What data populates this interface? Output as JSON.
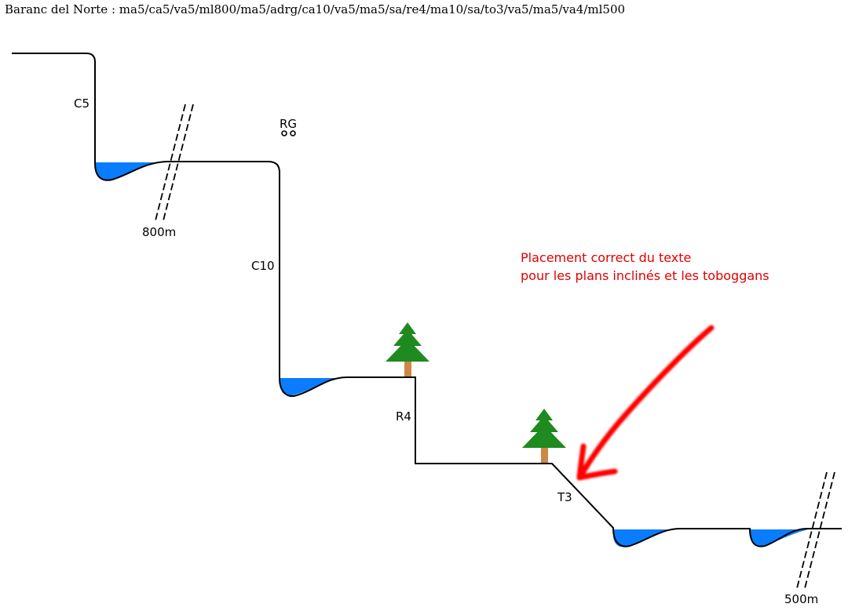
{
  "title": "Baranc del Norte : ma5/ca5/va5/ml800/ma5/adrg/ca10/va5/ma5/sa/re4/ma10/sa/to3/va5/ma5/va4/ml500",
  "labels": {
    "c5": "C5",
    "rg": "RG",
    "walk1": "800m",
    "c10": "C10",
    "r4": "R4",
    "t3": "T3",
    "walk2": "500m"
  },
  "note": {
    "line1": "Placement correct du texte",
    "line2": "pour les plans inclinés et les toboggans"
  },
  "colors": {
    "water": "#0a7cff",
    "tree_foliage": "#1f8a1f",
    "tree_trunk": "#cc8844",
    "arrow": "#ff0000",
    "note_text": "#e00000",
    "line": "#000000"
  },
  "icons": [
    "tree-icon",
    "anchor-rings-icon",
    "arrow-icon",
    "pool-icon",
    "break-marks-icon"
  ]
}
